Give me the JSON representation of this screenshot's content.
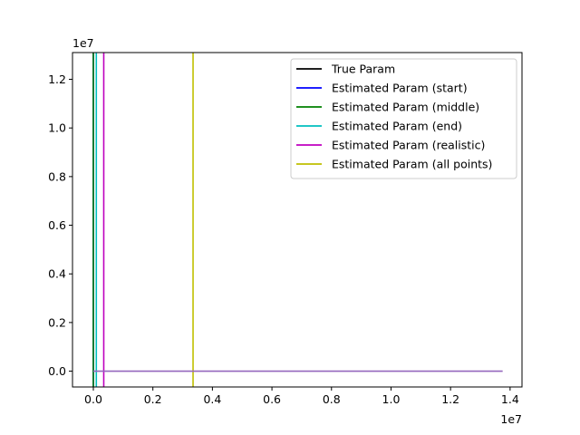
{
  "chart_data": {
    "type": "line",
    "x_tick_labels": [
      "0.0",
      "0.2",
      "0.4",
      "0.6",
      "0.8",
      "1.0",
      "1.2",
      "1.4"
    ],
    "y_tick_labels": [
      "0.0",
      "0.2",
      "0.4",
      "0.6",
      "0.8",
      "1.0",
      "1.2"
    ],
    "x_multiplier_label": "1e7",
    "y_multiplier_label": "1e7",
    "x_scale": 10000000,
    "y_scale": 10000000,
    "xlim": [
      -700000,
      14400000
    ],
    "ylim": [
      -650000,
      13100000
    ],
    "grid": false,
    "legend_position": "top-right",
    "series": [
      {
        "name": "True Param",
        "color": "#000000",
        "x": [],
        "y": []
      },
      {
        "name": "Estimated Param (start)",
        "color": "#0000ff",
        "x": [
          0,
          0
        ],
        "y": [
          -650000,
          13100000
        ]
      },
      {
        "name": "Estimated Param (middle)",
        "color": "#008000",
        "x": [
          0,
          0
        ],
        "y": [
          -650000,
          13100000
        ]
      },
      {
        "name": "Estimated Param (end)",
        "color": "#00bfbf",
        "x": [
          100000,
          100000
        ],
        "y": [
          -650000,
          13100000
        ]
      },
      {
        "name": "Estimated Param (realistic)",
        "color": "#bf00bf",
        "x": [
          350000,
          350000
        ],
        "y": [
          -650000,
          13100000
        ]
      },
      {
        "name": "Estimated Param (all points)",
        "color": "#bfbf00",
        "x": [
          3350000,
          3350000
        ],
        "y": [
          -650000,
          13100000
        ]
      },
      {
        "name": "",
        "color": "#9467bd",
        "x": [
          0,
          13750000
        ],
        "y": [
          0,
          0
        ]
      }
    ]
  }
}
